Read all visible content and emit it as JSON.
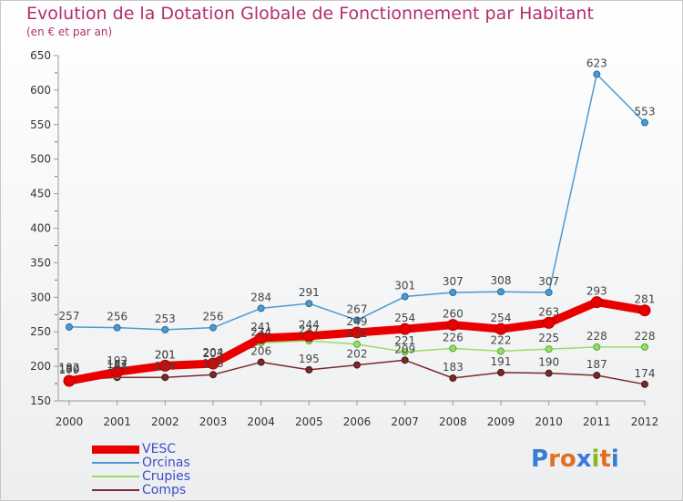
{
  "header": {
    "title": "Evolution de la Dotation Globale de Fonctionnement par Habitant",
    "subtitle": "(en € et par an)"
  },
  "logo": {
    "text": "Proxiti",
    "letter_colors": [
      "#3a7ad8",
      "#e07020",
      "#e07020",
      "#3a7ad8",
      "#88b820",
      "#e07020",
      "#3a7ad8"
    ]
  },
  "chart_data": {
    "type": "line",
    "title": "Evolution de la Dotation Globale de Fonctionnement par Habitant",
    "subtitle": "(en € et par an)",
    "x": [
      "2000",
      "2001",
      "2002",
      "2003",
      "2004",
      "2005",
      "2006",
      "2007",
      "2008",
      "2009",
      "2010",
      "2011",
      "2012"
    ],
    "ylim": [
      150,
      650
    ],
    "yticks": [
      150,
      200,
      250,
      300,
      350,
      400,
      450,
      500,
      550,
      600,
      650
    ],
    "grid": false,
    "legend_position": "bottom-left",
    "series": [
      {
        "name": "VESC",
        "color": "#e80000",
        "values": [
          179,
          192,
          201,
          204,
          241,
          244,
          249,
          254,
          260,
          254,
          263,
          293,
          281
        ],
        "labels": [
          "179",
          "192",
          "201",
          "204",
          "241",
          "244",
          "249",
          "254",
          "260",
          "254",
          "263",
          "293",
          "281"
        ]
      },
      {
        "name": "Orcinas",
        "color": "#4d9ad0",
        "values": [
          257,
          256,
          253,
          256,
          284,
          291,
          267,
          301,
          307,
          308,
          307,
          623,
          553
        ],
        "labels": [
          "257",
          "256",
          "253",
          "256",
          "284",
          "291",
          "267",
          "301",
          "307",
          "308",
          "307",
          "623",
          "553"
        ]
      },
      {
        "name": "Crupies",
        "color": "#99dd66",
        "values": [
          182,
          187,
          201,
          203,
          234,
          237,
          232,
          221,
          226,
          222,
          225,
          228,
          228
        ],
        "labels": [
          "182",
          "187",
          "201",
          "203",
          "234",
          "237",
          "232",
          "221",
          "226",
          "222",
          "225",
          "228",
          "228"
        ]
      },
      {
        "name": "Comps",
        "color": "#7a2a2a",
        "values": [
          180,
          184,
          184,
          188,
          206,
          195,
          202,
          209,
          183,
          191,
          190,
          187,
          174
        ],
        "labels": [
          "180",
          "184",
          "184",
          "188",
          "206",
          "195",
          "202",
          "209",
          "183",
          "191",
          "190",
          "187",
          "174"
        ]
      }
    ]
  }
}
